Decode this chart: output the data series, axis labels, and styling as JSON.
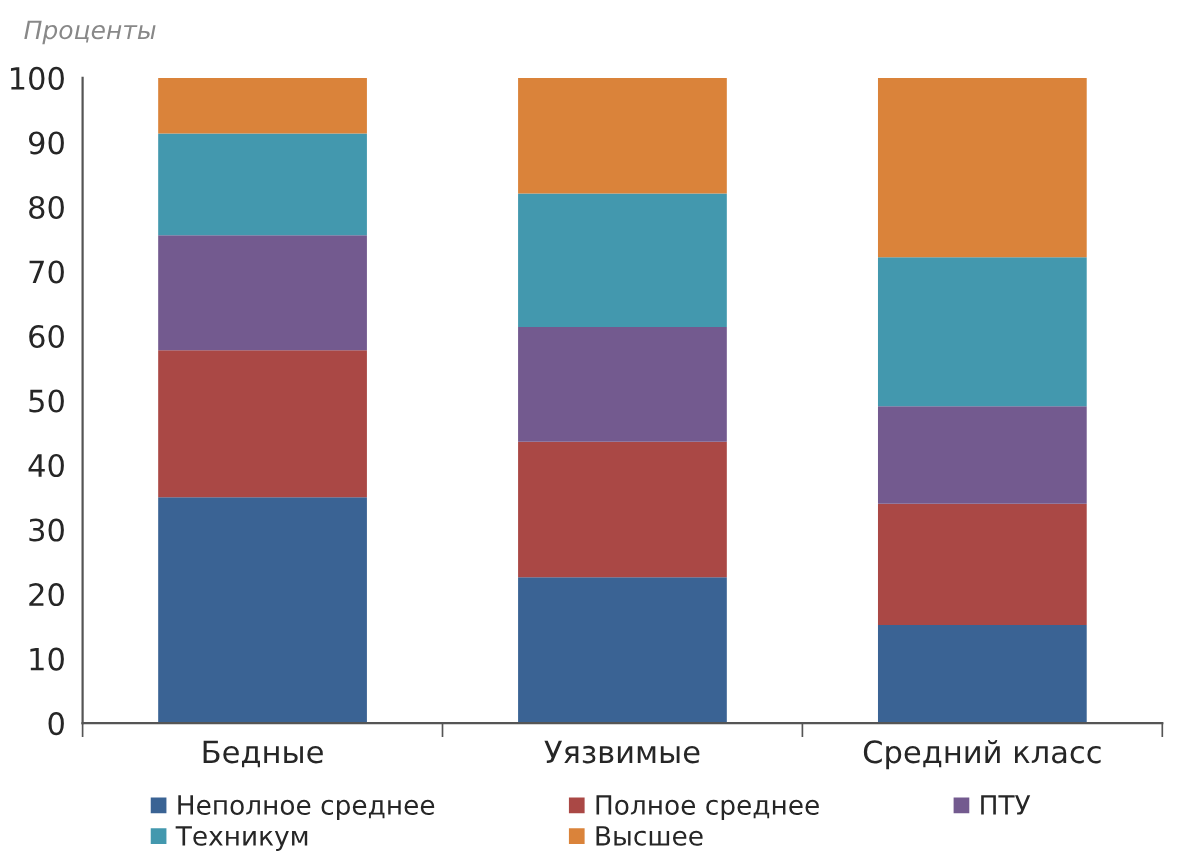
{
  "chart_data": {
    "type": "bar",
    "stacked": true,
    "ylabel": "Проценты",
    "categories": [
      "Бедные",
      "Уязвимые",
      "Средний класс"
    ],
    "series": [
      {
        "name": "Неполное среднее",
        "color": "#3a6394",
        "values": [
          35.0,
          22.6,
          15.2
        ]
      },
      {
        "name": "Полное среднее",
        "color": "#aa4845",
        "values": [
          22.8,
          21.0,
          18.8
        ]
      },
      {
        "name": "ПТУ",
        "color": "#735a8f",
        "values": [
          17.8,
          17.8,
          15.1
        ]
      },
      {
        "name": "Техникум",
        "color": "#4398ae",
        "values": [
          15.8,
          20.7,
          23.1
        ]
      },
      {
        "name": "Высшее",
        "color": "#da833a",
        "values": [
          8.6,
          17.9,
          27.8
        ]
      }
    ],
    "ylim": [
      0,
      100
    ],
    "yticks": [
      0,
      10,
      20,
      30,
      40,
      50,
      60,
      70,
      80,
      90,
      100
    ],
    "grid": false,
    "legend": "bottom"
  }
}
